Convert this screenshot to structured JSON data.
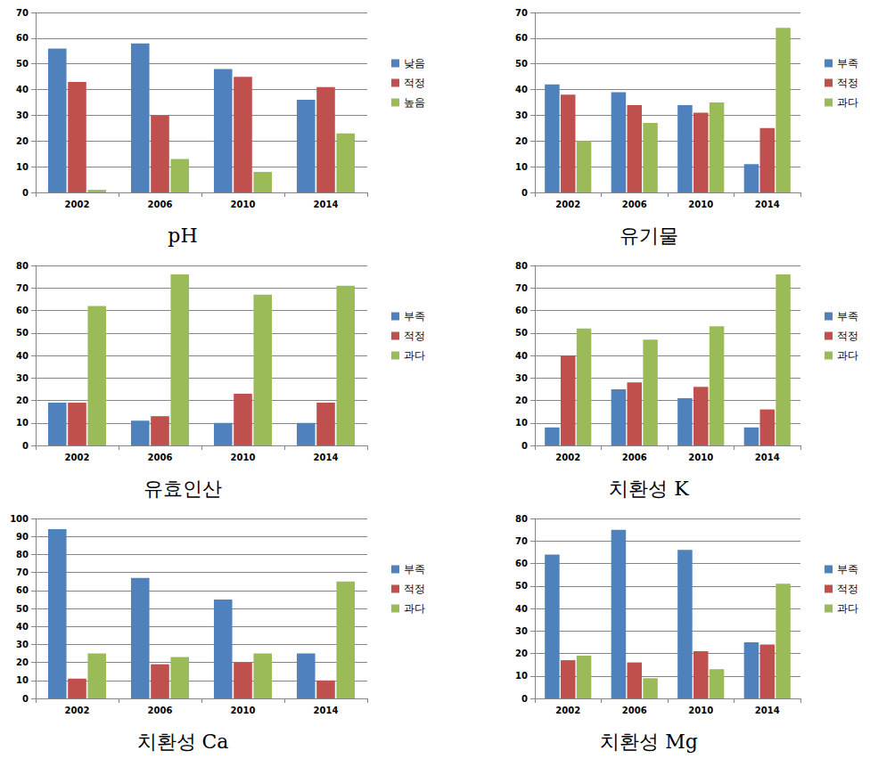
{
  "chart_data": [
    {
      "type": "bar",
      "title": "pH",
      "categories": [
        "2002",
        "2006",
        "2010",
        "2014"
      ],
      "series": [
        {
          "name": "낮음",
          "color": "#4F81BD",
          "values": [
            56,
            58,
            48,
            36
          ]
        },
        {
          "name": "적정",
          "color": "#C0504D",
          "values": [
            43,
            30,
            45,
            41
          ]
        },
        {
          "name": "높음",
          "color": "#9BBB59",
          "values": [
            1,
            13,
            8,
            23
          ]
        }
      ],
      "ylim": [
        0,
        70
      ],
      "yticks": [
        0,
        10,
        20,
        30,
        40,
        50,
        60,
        70
      ],
      "grid": true,
      "legend": "right"
    },
    {
      "type": "bar",
      "title": "유기물",
      "categories": [
        "2002",
        "2006",
        "2010",
        "2014"
      ],
      "series": [
        {
          "name": "부족",
          "color": "#4F81BD",
          "values": [
            42,
            39,
            34,
            11
          ]
        },
        {
          "name": "적정",
          "color": "#C0504D",
          "values": [
            38,
            34,
            31,
            25
          ]
        },
        {
          "name": "과다",
          "color": "#9BBB59",
          "values": [
            20,
            27,
            35,
            64
          ]
        }
      ],
      "ylim": [
        0,
        70
      ],
      "yticks": [
        0,
        10,
        20,
        30,
        40,
        50,
        60,
        70
      ],
      "grid": true,
      "legend": "right"
    },
    {
      "type": "bar",
      "title": "유효인산",
      "categories": [
        "2002",
        "2006",
        "2010",
        "2014"
      ],
      "series": [
        {
          "name": "부족",
          "color": "#4F81BD",
          "values": [
            19,
            11,
            10,
            10
          ]
        },
        {
          "name": "적정",
          "color": "#C0504D",
          "values": [
            19,
            13,
            23,
            19
          ]
        },
        {
          "name": "과다",
          "color": "#9BBB59",
          "values": [
            62,
            76,
            67,
            71
          ]
        }
      ],
      "ylim": [
        0,
        80
      ],
      "yticks": [
        0,
        10,
        20,
        30,
        40,
        50,
        60,
        70,
        80
      ],
      "grid": true,
      "legend": "right"
    },
    {
      "type": "bar",
      "title": "치환성 K",
      "categories": [
        "2002",
        "2006",
        "2010",
        "2014"
      ],
      "series": [
        {
          "name": "부족",
          "color": "#4F81BD",
          "values": [
            8,
            25,
            21,
            8
          ]
        },
        {
          "name": "적정",
          "color": "#C0504D",
          "values": [
            40,
            28,
            26,
            16
          ]
        },
        {
          "name": "과다",
          "color": "#9BBB59",
          "values": [
            52,
            47,
            53,
            76
          ]
        }
      ],
      "ylim": [
        0,
        80
      ],
      "yticks": [
        0,
        10,
        20,
        30,
        40,
        50,
        60,
        70,
        80
      ],
      "grid": true,
      "legend": "right"
    },
    {
      "type": "bar",
      "title": "치환성 Ca",
      "categories": [
        "2002",
        "2006",
        "2010",
        "2014"
      ],
      "series": [
        {
          "name": "부족",
          "color": "#4F81BD",
          "values": [
            94,
            67,
            55,
            25
          ]
        },
        {
          "name": "적정",
          "color": "#C0504D",
          "values": [
            11,
            19,
            20,
            10
          ]
        },
        {
          "name": "과다",
          "color": "#9BBB59",
          "values": [
            25,
            23,
            25,
            65
          ]
        }
      ],
      "ylim": [
        0,
        100
      ],
      "yticks": [
        0,
        10,
        20,
        30,
        40,
        50,
        60,
        70,
        80,
        90,
        100
      ],
      "grid": true,
      "legend": "right"
    },
    {
      "type": "bar",
      "title": "치환성 Mg",
      "categories": [
        "2002",
        "2006",
        "2010",
        "2014"
      ],
      "series": [
        {
          "name": "부족",
          "color": "#4F81BD",
          "values": [
            64,
            75,
            66,
            25
          ]
        },
        {
          "name": "적정",
          "color": "#C0504D",
          "values": [
            17,
            16,
            21,
            24
          ]
        },
        {
          "name": "과다",
          "color": "#9BBB59",
          "values": [
            19,
            9,
            13,
            51
          ]
        }
      ],
      "ylim": [
        0,
        80
      ],
      "yticks": [
        0,
        10,
        20,
        30,
        40,
        50,
        60,
        70,
        80
      ],
      "grid": true,
      "legend": "right"
    }
  ]
}
